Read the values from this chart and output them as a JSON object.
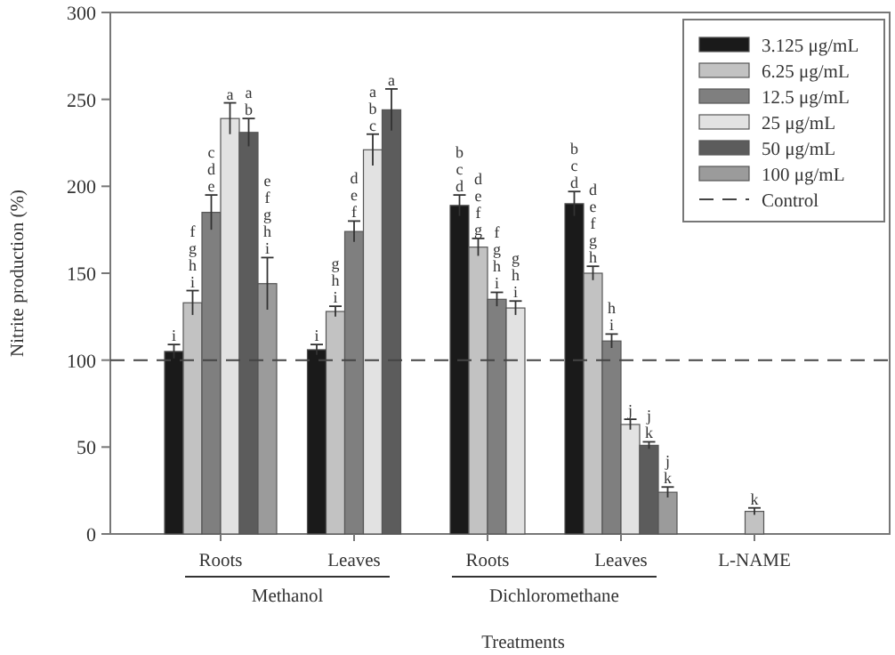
{
  "chart_data": {
    "type": "bar",
    "xlabel": "Treatments",
    "ylabel": "Nitrite production (%)",
    "categories": [
      "Roots",
      "Leaves",
      "Roots",
      "Leaves",
      "L-NAME"
    ],
    "annotations": [
      "Methanol",
      "Dichloromethane"
    ],
    "ylim": [
      0,
      300
    ],
    "yticks": [
      0,
      50,
      100,
      150,
      200,
      250,
      300
    ],
    "grid": false,
    "legend": "top right",
    "ref_lines": [
      {
        "axis": "y",
        "value": 100,
        "label": "Control",
        "color": "#444444",
        "line_style": "dashed"
      }
    ],
    "series": [
      {
        "name": "3.125 μg/mL",
        "color": "#1a1a1a",
        "values": [
          105,
          106,
          189,
          190,
          null
        ],
        "errors": [
          4,
          3,
          6,
          7,
          null
        ],
        "value_labels": [
          "i",
          "i",
          "b c d",
          "b c d",
          null
        ]
      },
      {
        "name": "6.25 μg/mL",
        "color": "#c2c2c2",
        "values": [
          133,
          128,
          165,
          150,
          13
        ],
        "errors": [
          7,
          3,
          5,
          4,
          2
        ],
        "value_labels": [
          "f g h i",
          "g h i",
          "d e f g",
          "d e f g h",
          "k"
        ]
      },
      {
        "name": "12.5 μg/mL",
        "color": "#7f7f7f",
        "values": [
          185,
          174,
          135,
          111,
          null
        ],
        "errors": [
          10,
          6,
          4,
          4,
          null
        ],
        "value_labels": [
          "c d e",
          "d e f",
          "f g h i",
          "h i",
          null
        ]
      },
      {
        "name": "25 μg/mL",
        "color": "#e2e2e2",
        "values": [
          239,
          221,
          130,
          63,
          null
        ],
        "errors": [
          9,
          9,
          4,
          3,
          null
        ],
        "value_labels": [
          "a",
          "a b c",
          "g h i",
          "j",
          null
        ]
      },
      {
        "name": "50 μg/mL",
        "color": "#5c5c5c",
        "values": [
          231,
          244,
          null,
          51,
          null
        ],
        "errors": [
          8,
          12,
          null,
          2,
          null
        ],
        "value_labels": [
          "a b",
          "a",
          null,
          "j k",
          null
        ]
      },
      {
        "name": "100 μg/mL",
        "color": "#9b9b9b",
        "values": [
          144,
          null,
          null,
          24,
          null
        ],
        "errors": [
          15,
          null,
          null,
          3,
          null
        ],
        "value_labels": [
          "e f g h i",
          null,
          null,
          "j k",
          null
        ]
      }
    ]
  }
}
